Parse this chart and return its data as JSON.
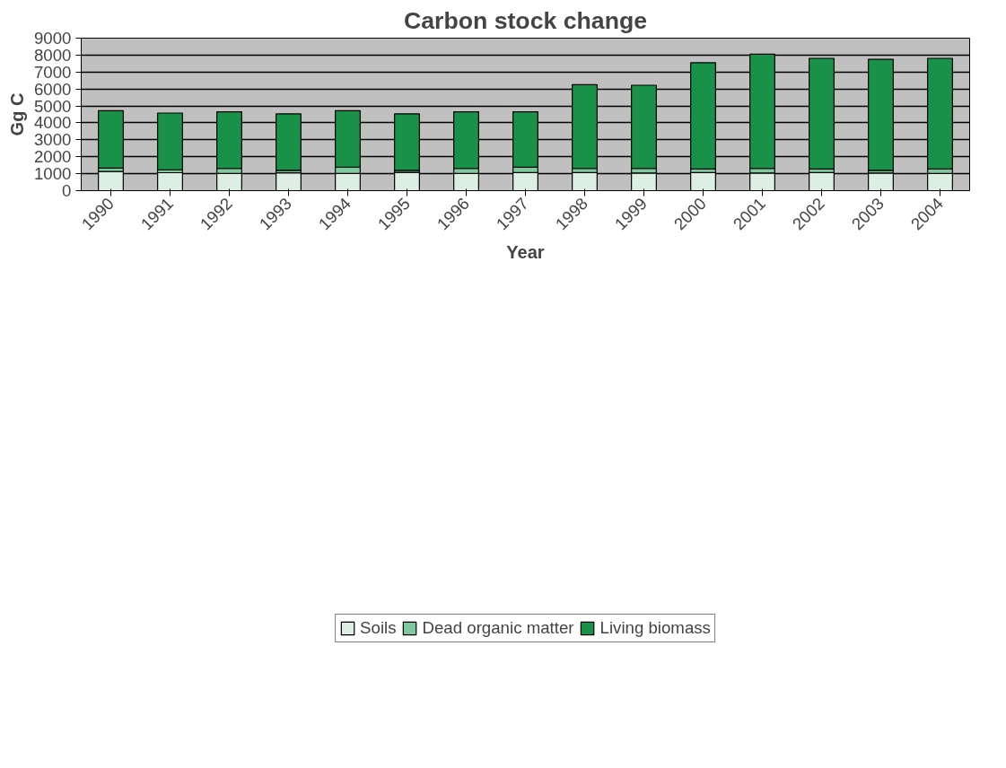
{
  "chart_data": {
    "type": "bar",
    "title": "Carbon stock change",
    "xlabel": "Year",
    "ylabel": "Gg C",
    "categories": [
      "1990",
      "1991",
      "1992",
      "1993",
      "1994",
      "1995",
      "1996",
      "1997",
      "1998",
      "1999",
      "2000",
      "2001",
      "2002",
      "2003",
      "2004"
    ],
    "stacked": true,
    "ylim": [
      0,
      9000
    ],
    "yticks": [
      0,
      1000,
      2000,
      3000,
      4000,
      5000,
      6000,
      7000,
      8000,
      9000
    ],
    "grid": "y",
    "legend": "bottom",
    "series": [
      {
        "name": "Soils",
        "color": "#dcefe2",
        "values": [
          1130,
          1060,
          1010,
          1050,
          1010,
          1080,
          1010,
          1070,
          1070,
          1040,
          1070,
          1040,
          1070,
          1040,
          1010
        ]
      },
      {
        "name": "Dead organic matter",
        "color": "#80c89e",
        "values": [
          200,
          170,
          300,
          150,
          380,
          120,
          300,
          310,
          240,
          270,
          210,
          270,
          210,
          160,
          270
        ]
      },
      {
        "name": "Living biomass",
        "color": "#1a9148",
        "values": [
          3390,
          3350,
          3340,
          3330,
          3330,
          3330,
          3340,
          3270,
          4940,
          4910,
          6270,
          6740,
          6530,
          6550,
          6530
        ]
      }
    ]
  }
}
